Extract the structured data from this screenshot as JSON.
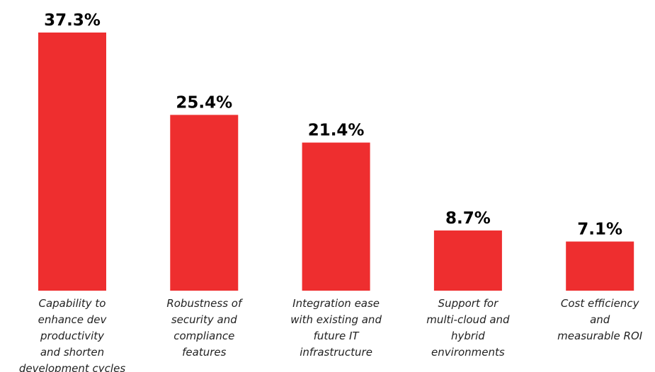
{
  "chart_data": {
    "type": "bar",
    "categories": [
      "Capability to\nenhance dev\nproductivity\nand shorten\ndevelopment cycles",
      "Robustness of\nsecurity and\ncompliance\nfeatures",
      "Integration ease\nwith existing and\nfuture IT\ninfrastructure",
      "Support for\nmulti-cloud and\nhybrid\nenvironments",
      "Cost efficiency\nand\nmeasurable ROI"
    ],
    "values": [
      37.3,
      25.4,
      21.4,
      8.7,
      7.1
    ],
    "value_labels": [
      "37.3%",
      "25.4%",
      "21.4%",
      "8.7%",
      "7.1%"
    ],
    "color": "#ee2e2f"
  }
}
